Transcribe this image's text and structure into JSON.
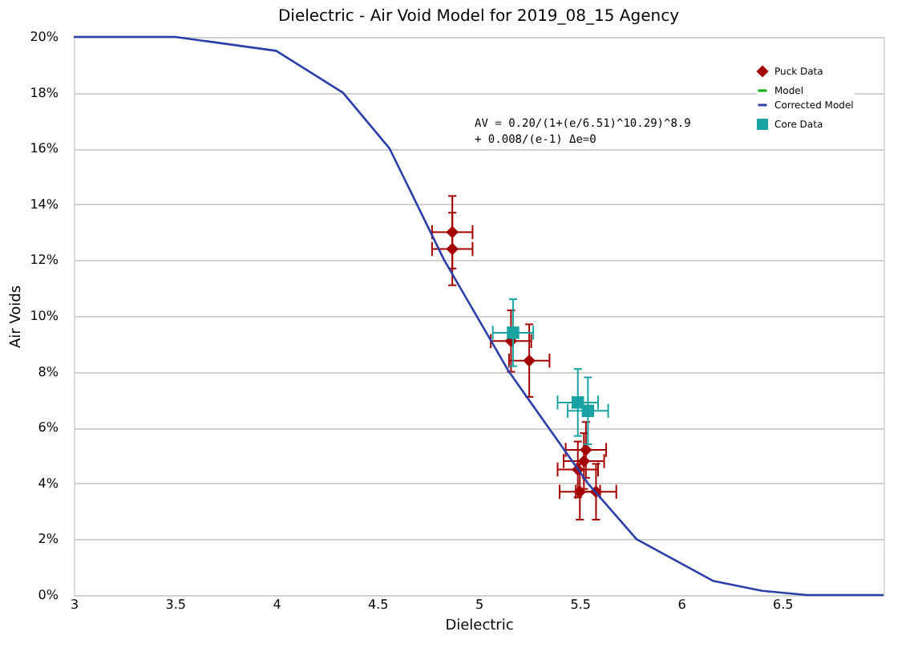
{
  "chart_data": {
    "type": "scatter",
    "title": "Dielectric - Air Void Model for 2019_08_15 Agency",
    "xlabel": "Dielectric",
    "ylabel": "Air Voids",
    "xlim": [
      3,
      7
    ],
    "xticks": [
      3,
      3.5,
      4,
      4.5,
      5,
      5.5,
      6,
      6.5
    ],
    "ylim": [
      0,
      20
    ],
    "yticks": [
      {
        "value": 0,
        "label": "0%"
      },
      {
        "value": 2,
        "label": "2%"
      },
      {
        "value": 4,
        "label": "4%"
      },
      {
        "value": 6,
        "label": "6%"
      },
      {
        "value": 8,
        "label": "8%"
      },
      {
        "value": 10,
        "label": "10%"
      },
      {
        "value": 12,
        "label": "12%"
      },
      {
        "value": 14,
        "label": "14%"
      },
      {
        "value": 16,
        "label": "16%"
      },
      {
        "value": 18,
        "label": "18%"
      },
      {
        "value": 20,
        "label": "20%"
      }
    ],
    "grid": "y",
    "legend": "top right",
    "annotations": [
      "AV = 0.20/(1+(e/6.51)^10.29)^8.9\n     + 0.008/(e-1)        Δe=0"
    ],
    "series": [
      {
        "name": "Puck Data",
        "marker": "diamond",
        "color": "#a50000",
        "x": [
          4.87,
          4.87,
          5.16,
          5.25,
          5.52,
          5.49,
          5.53,
          5.58,
          5.5
        ],
        "values": [
          13.0,
          12.4,
          9.1,
          8.4,
          4.8,
          4.5,
          5.2,
          3.7,
          3.7
        ],
        "errors": [
          1.3,
          1.3,
          1.1,
          1.3,
          1.0,
          1.0,
          1.0,
          1.0,
          1.0
        ],
        "xerrors": [
          0.1,
          0.1,
          0.1,
          0.1,
          0.1,
          0.1,
          0.1,
          0.1,
          0.1
        ]
      },
      {
        "name": "Model",
        "type": "line",
        "color": "#00b000"
      },
      {
        "name": "Corrected Model",
        "type": "line",
        "color": "#2b3fa8",
        "x": [
          3,
          3.5,
          4,
          4.33,
          4.56,
          4.83,
          5.15,
          5.54,
          5.78,
          6.16,
          6.4,
          6.62,
          7
        ],
        "values": [
          20,
          20,
          19.5,
          18,
          16,
          12,
          8,
          4,
          2,
          0.5,
          0.15,
          0,
          0
        ]
      },
      {
        "name": "Core Data",
        "marker": "square",
        "color": "#1aa3a3",
        "x": [
          5.17,
          5.49,
          5.54
        ],
        "values": [
          9.4,
          6.9,
          6.6
        ],
        "errors": [
          1.2,
          1.2,
          1.2
        ],
        "xerrors": [
          0.1,
          0.1,
          0.1
        ]
      }
    ]
  }
}
